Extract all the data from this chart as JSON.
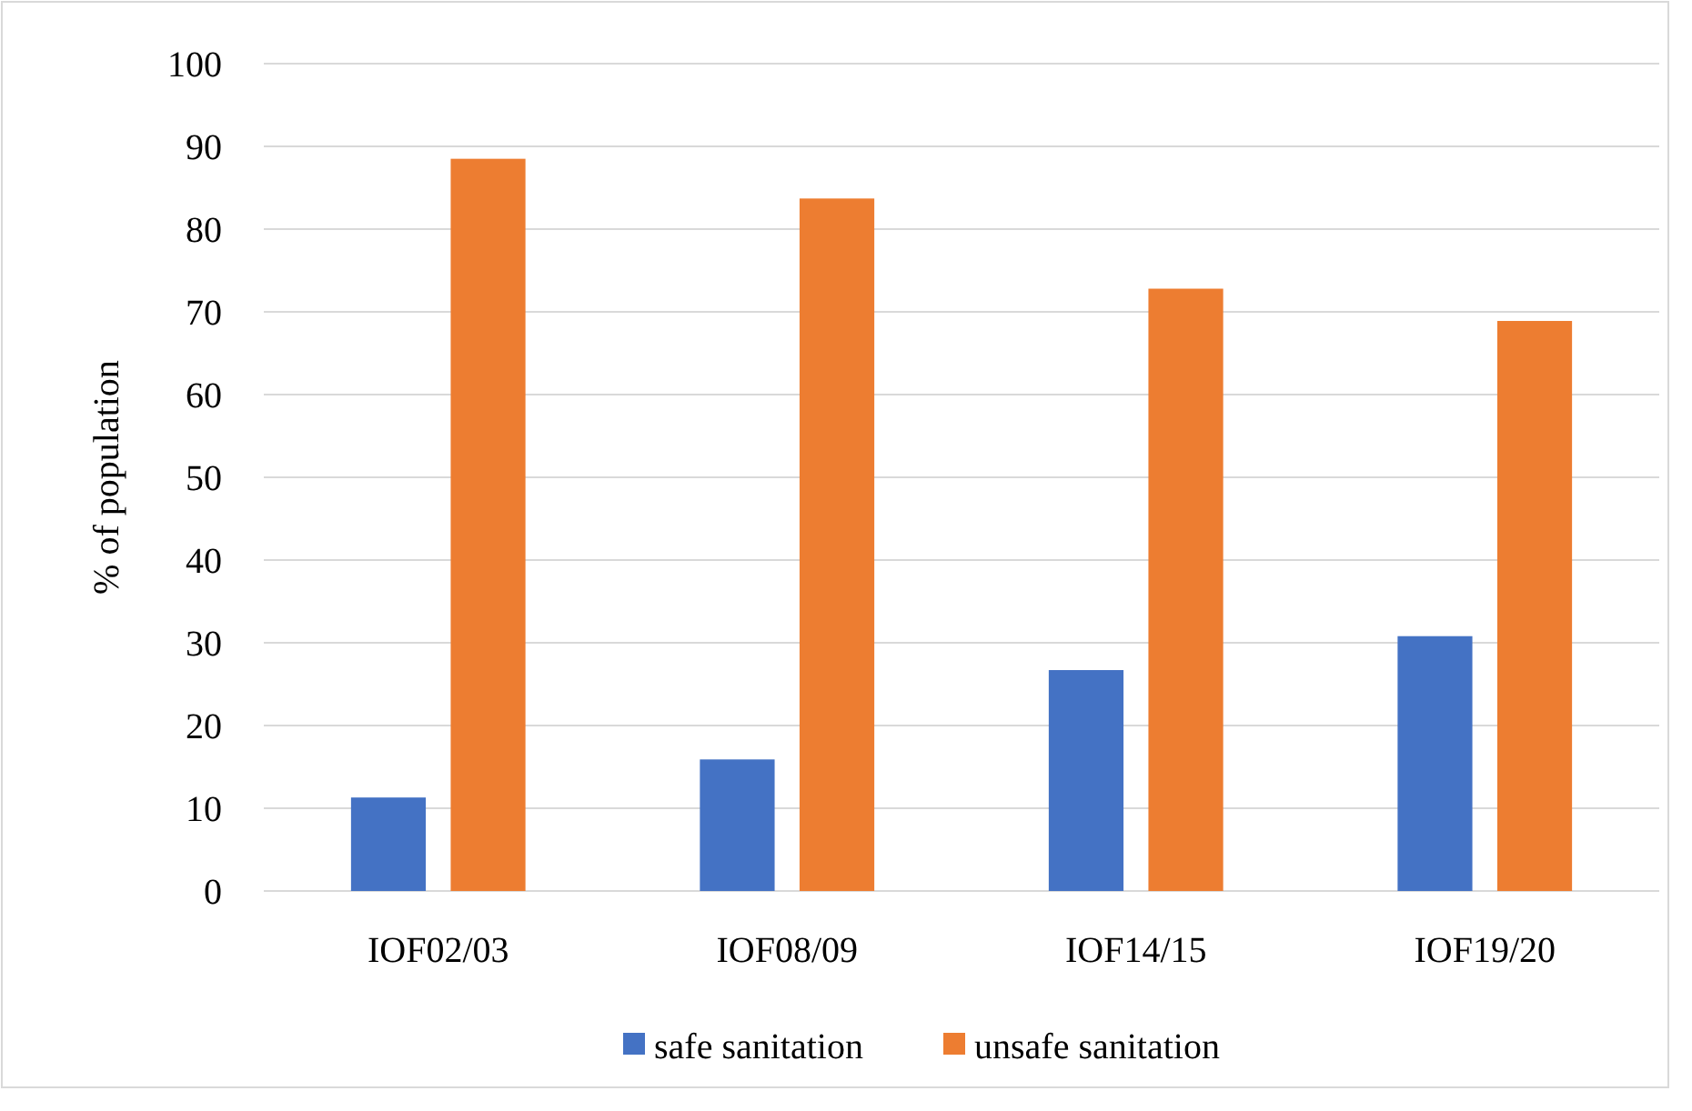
{
  "chart_data": {
    "type": "bar",
    "ylabel": "% of population",
    "categories": [
      "IOF02/03",
      "IOF08/09",
      "IOF14/15",
      "IOF19/20"
    ],
    "series": [
      {
        "name": "safe sanitation",
        "color": "#4472c4",
        "values": [
          11.3,
          15.9,
          26.7,
          30.8
        ]
      },
      {
        "name": "unsafe sanitation",
        "color": "#ed7d31",
        "values": [
          88.5,
          83.7,
          72.8,
          68.9
        ]
      }
    ],
    "ylim": [
      0,
      100
    ],
    "yticks": [
      0,
      10,
      20,
      30,
      40,
      50,
      60,
      70,
      80,
      90,
      100
    ],
    "grid": "y",
    "legend": "bottom"
  }
}
